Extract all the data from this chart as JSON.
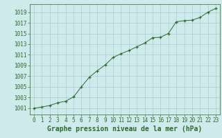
{
  "x": [
    0,
    1,
    2,
    3,
    4,
    5,
    6,
    7,
    8,
    9,
    10,
    11,
    12,
    13,
    14,
    15,
    16,
    17,
    18,
    19,
    20,
    21,
    22,
    23
  ],
  "y": [
    1001.0,
    1001.2,
    1001.5,
    1002.0,
    1002.3,
    1003.1,
    1005.0,
    1006.8,
    1008.0,
    1009.1,
    1010.5,
    1011.2,
    1011.8,
    1012.5,
    1013.2,
    1014.2,
    1014.3,
    1015.0,
    1017.2,
    1017.4,
    1017.5,
    1018.0,
    1019.0,
    1019.7
  ],
  "line_color": "#2d6a2d",
  "marker_color": "#2d6a2d",
  "bg_color": "#ceeaea",
  "grid_color": "#aacccc",
  "xlabel": "Graphe pression niveau de la mer (hPa)",
  "xlabel_fontsize": 7,
  "ylabel_ticks": [
    1001,
    1003,
    1005,
    1007,
    1009,
    1011,
    1013,
    1015,
    1017,
    1019
  ],
  "ylim": [
    999.8,
    1020.5
  ],
  "xlim": [
    -0.5,
    23.5
  ],
  "xticks": [
    0,
    1,
    2,
    3,
    4,
    5,
    6,
    7,
    8,
    9,
    10,
    11,
    12,
    13,
    14,
    15,
    16,
    17,
    18,
    19,
    20,
    21,
    22,
    23
  ],
  "title_color": "#2d6a2d",
  "tick_fontsize": 5.5,
  "spine_color": "#4a7a4a"
}
